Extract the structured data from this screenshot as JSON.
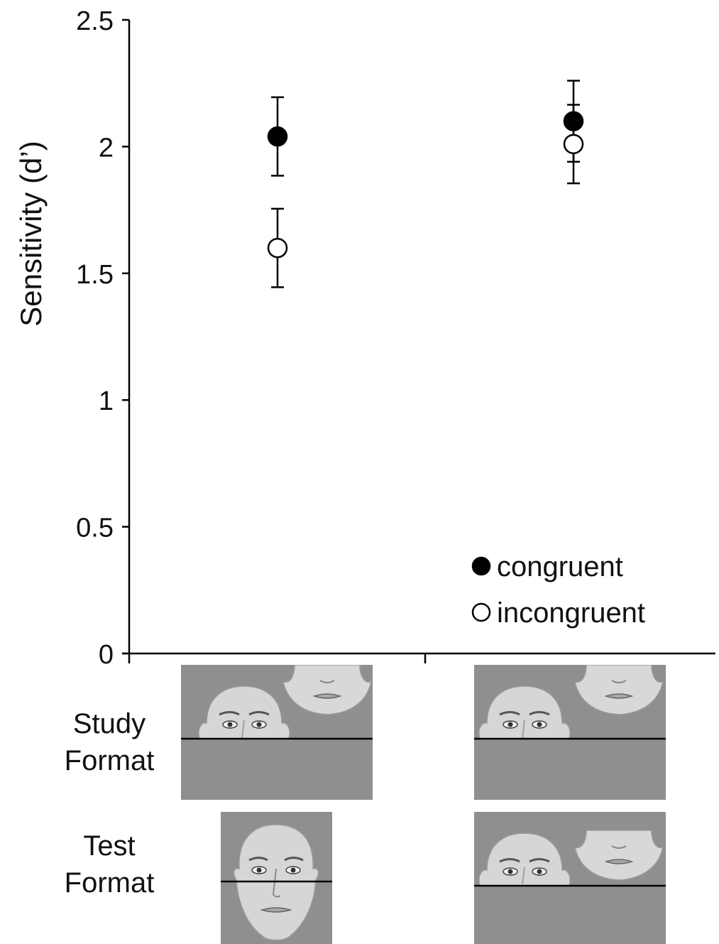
{
  "chart_data": {
    "type": "scatter",
    "ylabel": "Sensitivity (d’)",
    "xlabel": "",
    "ylim": [
      0,
      2.5
    ],
    "yticks": [
      "0",
      "0.5",
      "1",
      "1.5",
      "2",
      "2.5"
    ],
    "ytick_values": [
      0,
      0.5,
      1,
      1.5,
      2,
      2.5
    ],
    "grid": false,
    "legend_position": "bottom-right",
    "categories": [
      "misaligned study / aligned test",
      "misaligned study / misaligned test"
    ],
    "series": [
      {
        "name": "congruent",
        "marker": "filled-circle",
        "color": "#000000",
        "values": [
          2.04,
          2.1
        ],
        "error": [
          0.155,
          0.16
        ]
      },
      {
        "name": "incongruent",
        "marker": "open-circle",
        "color": "#ffffff",
        "values": [
          1.6,
          2.01
        ],
        "error": [
          0.155,
          0.155
        ]
      }
    ]
  },
  "panels": {
    "study_label": [
      "Study",
      "Format"
    ],
    "test_label": [
      "Test",
      "Format"
    ],
    "study_format": [
      "misaligned",
      "misaligned"
    ],
    "test_format": [
      "aligned",
      "misaligned"
    ],
    "panel_color": "#8f8f8f"
  }
}
